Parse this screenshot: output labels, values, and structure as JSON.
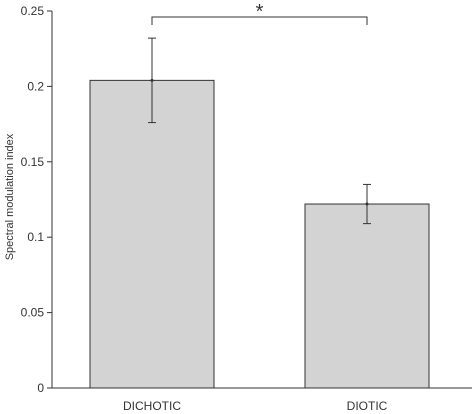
{
  "chart_data": {
    "type": "bar",
    "categories": [
      "DICHOTIC",
      "DIOTIC"
    ],
    "values": [
      0.204,
      0.122
    ],
    "error_low": [
      0.176,
      0.109
    ],
    "error_high": [
      0.232,
      0.135
    ],
    "ylabel": "Spectral modulation index",
    "ylim": [
      0,
      0.25
    ],
    "yticks": [
      0,
      0.05,
      0.1,
      0.15,
      0.2,
      0.25
    ],
    "ytick_labels": [
      "0",
      "0.05",
      "0.1",
      "0.15",
      "0.2",
      "0.25"
    ],
    "significance": {
      "between": [
        0,
        1
      ],
      "label": "*"
    },
    "bar_color": "#d3d3d3",
    "bar_edge_color": "#333333",
    "grid": false
  }
}
